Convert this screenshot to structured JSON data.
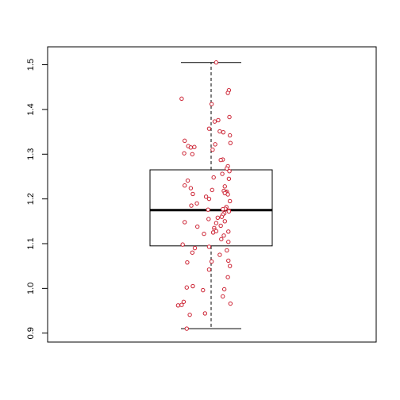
{
  "chart_data": {
    "type": "boxplot",
    "title": "",
    "xlabel": "",
    "ylabel": "",
    "ylim": [
      0.88,
      1.54
    ],
    "yticks": [
      0.9,
      1.0,
      1.1,
      1.2,
      1.3,
      1.4,
      1.5
    ],
    "ytick_labels": [
      "0.9",
      "1.0",
      "1.1",
      "1.2",
      "1.3",
      "1.4",
      "1.5"
    ],
    "box": {
      "whisker_low": 0.91,
      "q1": 1.095,
      "median": 1.175,
      "q3": 1.265,
      "whisker_high": 1.505
    },
    "points": {
      "y": [
        1.505,
        1.443,
        1.437,
        1.424,
        1.412,
        1.383,
        1.376,
        1.373,
        1.357,
        1.351,
        1.349,
        1.342,
        1.33,
        1.325,
        1.322,
        1.318,
        1.316,
        1.315,
        1.31,
        1.302,
        1.3,
        1.288,
        1.287,
        1.273,
        1.268,
        1.262,
        1.256,
        1.248,
        1.245,
        1.241,
        1.23,
        1.228,
        1.224,
        1.22,
        1.218,
        1.216,
        1.214,
        1.213,
        1.211,
        1.21,
        1.205,
        1.2,
        1.195,
        1.19,
        1.185,
        1.182,
        1.178,
        1.177,
        1.176,
        1.174,
        1.172,
        1.168,
        1.165,
        1.16,
        1.158,
        1.155,
        1.15,
        1.148,
        1.146,
        1.14,
        1.138,
        1.135,
        1.13,
        1.128,
        1.127,
        1.125,
        1.122,
        1.118,
        1.11,
        1.104,
        1.098,
        1.093,
        1.09,
        1.085,
        1.08,
        1.075,
        1.062,
        1.06,
        1.058,
        1.05,
        1.042,
        1.025,
        1.005,
        1.002,
        0.998,
        0.996,
        0.982,
        0.97,
        0.966,
        0.963,
        0.962,
        0.944,
        0.941,
        0.91
      ],
      "jitter": [
        0.1,
        0.35,
        0.33,
        -0.58,
        0.01,
        0.36,
        0.14,
        0.07,
        -0.04,
        0.17,
        0.24,
        0.37,
        -0.52,
        0.38,
        0.08,
        -0.45,
        -0.33,
        -0.4,
        0.03,
        -0.53,
        -0.37,
        0.23,
        0.19,
        0.33,
        0.31,
        0.36,
        0.22,
        0.05,
        0.35,
        -0.46,
        -0.52,
        0.27,
        -0.4,
        0.02,
        0.25,
        0.31,
        0.29,
        0.27,
        -0.36,
        0.33,
        -0.1,
        -0.04,
        0.37,
        -0.28,
        -0.39,
        0.3,
        0.28,
        0.23,
        -0.06,
        0.35,
        0.35,
        0.26,
        0.23,
        0.21,
        0.13,
        -0.05,
        0.27,
        -0.52,
        0.1,
        0.19,
        -0.27,
        0.06,
        0.07,
        0.1,
        0.34,
        0.04,
        -0.14,
        0.25,
        0.2,
        0.34,
        -0.56,
        -0.04,
        -0.32,
        0.31,
        -0.37,
        0.17,
        0.34,
        0.01,
        -0.47,
        0.37,
        -0.04,
        0.33,
        -0.36,
        -0.48,
        0.26,
        -0.16,
        0.23,
        -0.54,
        0.38,
        -0.58,
        -0.65,
        -0.12,
        -0.42,
        -0.48
      ],
      "color": "#cc2233"
    },
    "colors": {
      "axis": "#000000",
      "box_border": "#000000",
      "median": "#000000",
      "point_stroke": "#cc2233",
      "point_fill": "#ffffff"
    }
  }
}
